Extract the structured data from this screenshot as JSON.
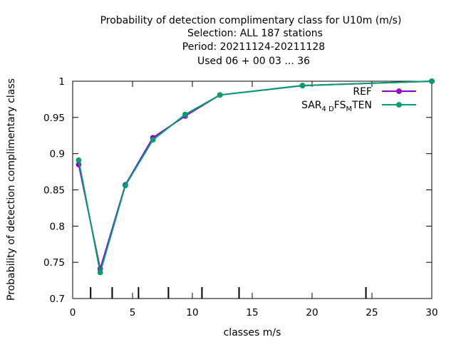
{
  "chart_data": {
    "type": "line",
    "title_lines": [
      "Probability of detection complimentary class  for U10m (m/s)",
      "Selection: ALL    187 stations",
      "Period: 20211124-20211128",
      "Used  06 + 00 03 ... 36"
    ],
    "xlabel": "classes m/s",
    "ylabel": "Probability of detection complimentary class",
    "xlim": [
      0,
      30
    ],
    "ylim": [
      0.7,
      1.0
    ],
    "x_ticks": [
      0,
      5,
      10,
      15,
      20,
      25,
      30
    ],
    "x_tick_labels": [
      "0",
      "5",
      "10",
      "15",
      "20",
      "25",
      "30"
    ],
    "y_ticks": [
      0.7,
      0.75,
      0.8,
      0.85,
      0.9,
      0.95,
      1.0
    ],
    "y_tick_labels": [
      "0.7",
      "0.75",
      "0.8",
      "0.85",
      "0.9",
      "0.95",
      "1"
    ],
    "class_boundaries": [
      1.5,
      3.3,
      5.5,
      8.0,
      10.8,
      13.9,
      24.5
    ],
    "grid": false,
    "legend_position": "top-right",
    "series": [
      {
        "name": "REF",
        "color": "#9400d3",
        "x": [
          0.5,
          2.3,
          4.4,
          6.7,
          9.4,
          12.3,
          19.2,
          30.0
        ],
        "y": [
          0.885,
          0.741,
          0.857,
          0.922,
          0.952,
          0.981,
          0.994,
          1.0
        ]
      },
      {
        "name_parts": [
          {
            "text": "SAR",
            "sub": false
          },
          {
            "text": "4 D",
            "sub": true
          },
          {
            "text": "FS",
            "sub": false
          },
          {
            "text": "M",
            "sub": true
          },
          {
            "text": "TEN",
            "sub": false
          }
        ],
        "color": "#009e73",
        "x": [
          0.5,
          2.3,
          4.4,
          6.7,
          9.4,
          12.3,
          19.2,
          30.0
        ],
        "y": [
          0.891,
          0.736,
          0.856,
          0.919,
          0.954,
          0.981,
          0.994,
          1.0
        ]
      }
    ]
  }
}
